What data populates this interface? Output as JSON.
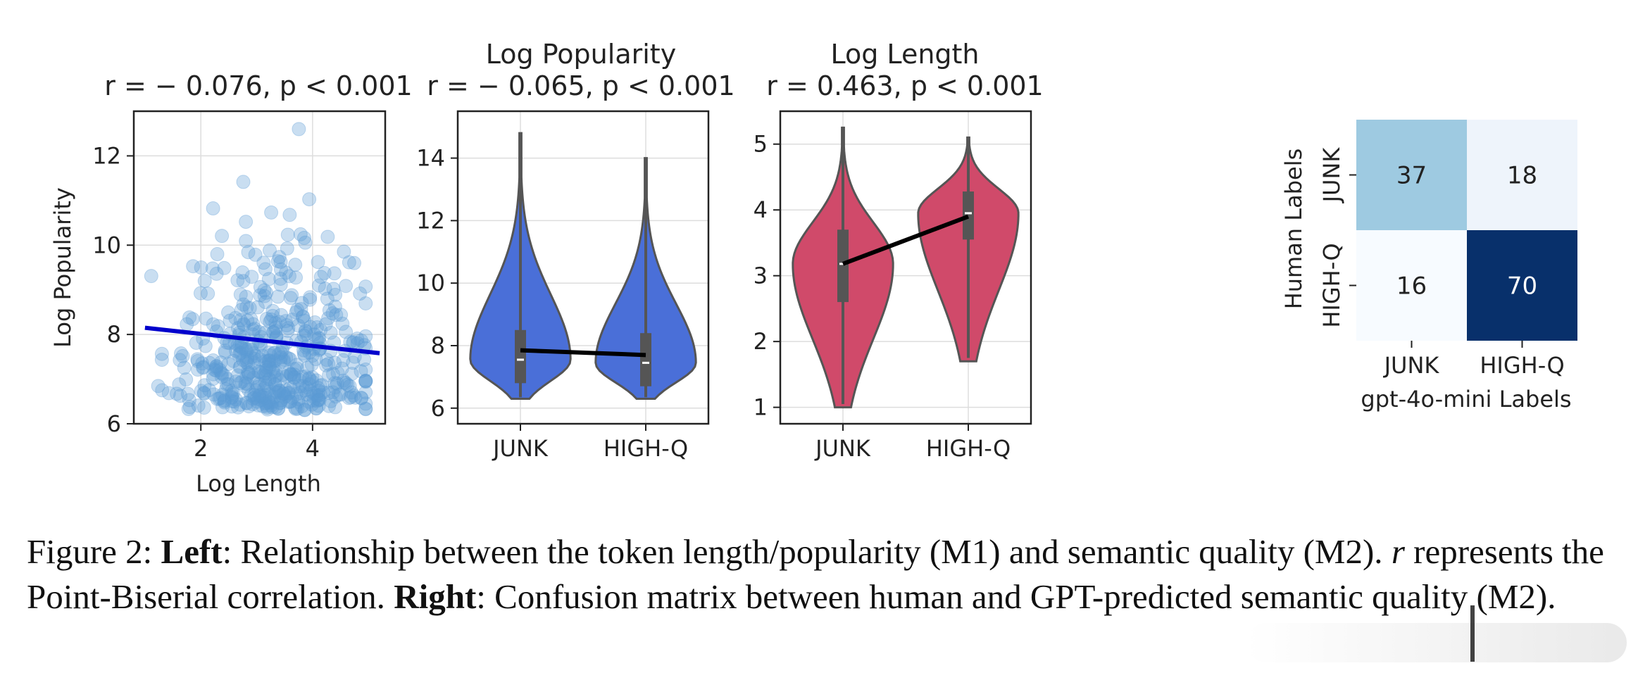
{
  "chart_data": [
    {
      "type": "scatter",
      "title": "r = − 0.076, p < 0.001",
      "xlabel": "Log Length",
      "ylabel": "Log Popularity",
      "xlim": [
        0.8,
        5.3
      ],
      "ylim": [
        6.0,
        13.0
      ],
      "xticks": [
        "2",
        "4"
      ],
      "yticks": [
        "6",
        "8",
        "10",
        "12"
      ],
      "regression": {
        "x": [
          1.0,
          5.2
        ],
        "y": [
          8.15,
          7.58
        ]
      },
      "n_points": 520,
      "point_color": "#5b9bd5",
      "line_color": "#0000cc"
    },
    {
      "type": "violin",
      "title": "Log Popularity",
      "subtitle": "r = − 0.065, p < 0.001",
      "categories": [
        "JUNK",
        "HIGH-Q"
      ],
      "ylim": [
        5.5,
        15.5
      ],
      "yticks": [
        "6",
        "8",
        "10",
        "12",
        "14"
      ],
      "violins": [
        {
          "name": "JUNK",
          "min": 6.3,
          "q1": 6.8,
          "median": 7.55,
          "q3": 8.5,
          "max": 14.8,
          "mean": 7.85
        },
        {
          "name": "HIGH-Q",
          "min": 6.3,
          "q1": 6.7,
          "median": 7.45,
          "q3": 8.4,
          "max": 14.0,
          "mean": 7.7
        }
      ],
      "color": "#4a6fd8"
    },
    {
      "type": "violin",
      "title": "Log Length",
      "subtitle": "r = 0.463, p < 0.001",
      "categories": [
        "JUNK",
        "HIGH-Q"
      ],
      "ylim": [
        0.75,
        5.5
      ],
      "yticks": [
        "1",
        "2",
        "3",
        "4",
        "5"
      ],
      "violins": [
        {
          "name": "JUNK",
          "min": 1.0,
          "q1": 2.6,
          "median": 3.18,
          "q3": 3.7,
          "max": 5.25,
          "mean": 3.18
        },
        {
          "name": "HIGH-Q",
          "min": 1.7,
          "q1": 3.55,
          "median": 3.95,
          "q3": 4.28,
          "max": 5.1,
          "mean": 3.9
        }
      ],
      "color": "#d04a6a"
    },
    {
      "type": "heatmap",
      "xlabel": "gpt-4o-mini Labels",
      "ylabel": "Human Labels",
      "x_categories": [
        "JUNK",
        "HIGH-Q"
      ],
      "y_categories": [
        "JUNK",
        "HIGH-Q"
      ],
      "values": [
        [
          37,
          18
        ],
        [
          16,
          70
        ]
      ],
      "colors": [
        [
          "#9ecae1",
          "#eef4fb"
        ],
        [
          "#f7fbff",
          "#08306b"
        ]
      ],
      "text_colors": [
        [
          "#222222",
          "#222222"
        ],
        [
          "#222222",
          "#ffffff"
        ]
      ]
    }
  ],
  "caption": {
    "fig_label": "Figure 2:",
    "left_label": "Left",
    "left_text": ": Relationship between the token length/popularity (M1) and semantic quality (M2). ",
    "r_symbol": "r",
    "r_text": " represents the Point-Biserial correlation. ",
    "right_label": "Right",
    "right_text": ": Confusion matrix between human and GPT-predicted semantic quality (M2)."
  }
}
